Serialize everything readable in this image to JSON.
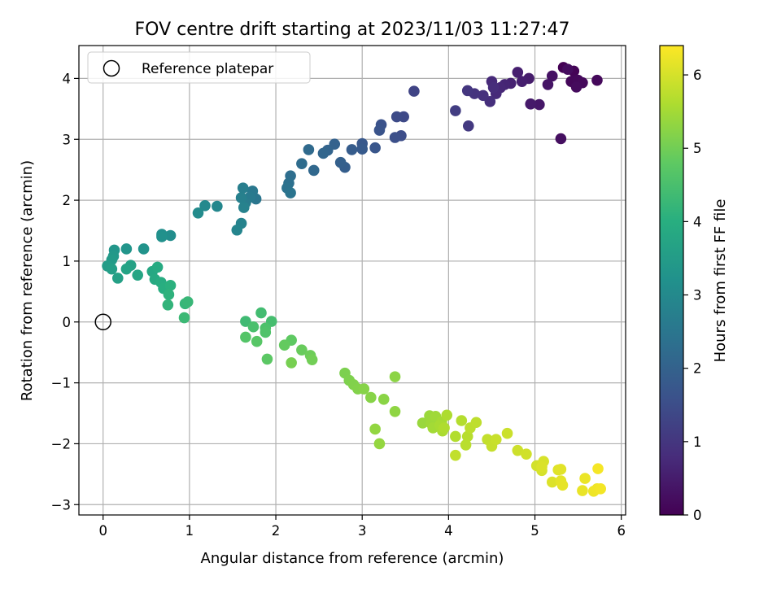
{
  "chart_data": {
    "type": "scatter",
    "title": "FOV centre drift starting at 2023/11/03 11:27:47",
    "xlabel": "Angular distance from reference (arcmin)",
    "ylabel": "Rotation from reference (arcmin)",
    "xlim": [
      -0.28,
      6.05
    ],
    "ylim": [
      -3.17,
      4.54
    ],
    "xticks": [
      0,
      1,
      2,
      3,
      4,
      5,
      6
    ],
    "yticks": [
      -3,
      -2,
      -1,
      0,
      1,
      2,
      3,
      4
    ],
    "grid": true,
    "legend": {
      "placement": "top-left",
      "entries": [
        "Reference platepar"
      ]
    },
    "reference_point": {
      "x": 0,
      "y": 0
    },
    "colormap": "viridis",
    "colorbar": {
      "label": "Hours from first FF file",
      "range": [
        0,
        6.4
      ],
      "ticks": [
        0,
        1,
        2,
        3,
        4,
        5,
        6
      ]
    },
    "points": [
      {
        "x": 5.33,
        "y": 4.18,
        "t": 0.0
      },
      {
        "x": 5.45,
        "y": 4.12,
        "t": 0.05
      },
      {
        "x": 5.46,
        "y": 3.98,
        "t": 0.08
      },
      {
        "x": 5.42,
        "y": 3.95,
        "t": 0.1
      },
      {
        "x": 5.5,
        "y": 3.97,
        "t": 0.12
      },
      {
        "x": 5.55,
        "y": 3.93,
        "t": 0.15
      },
      {
        "x": 5.72,
        "y": 3.97,
        "t": 0.15
      },
      {
        "x": 5.48,
        "y": 3.86,
        "t": 0.18
      },
      {
        "x": 5.38,
        "y": 4.15,
        "t": 0.2
      },
      {
        "x": 5.3,
        "y": 3.01,
        "t": 0.25
      },
      {
        "x": 5.2,
        "y": 4.04,
        "t": 0.3
      },
      {
        "x": 5.15,
        "y": 3.9,
        "t": 0.35
      },
      {
        "x": 5.05,
        "y": 3.57,
        "t": 0.4
      },
      {
        "x": 4.95,
        "y": 3.58,
        "t": 0.45
      },
      {
        "x": 4.93,
        "y": 4.0,
        "t": 0.5
      },
      {
        "x": 4.8,
        "y": 4.1,
        "t": 0.55
      },
      {
        "x": 4.85,
        "y": 3.95,
        "t": 0.55
      },
      {
        "x": 4.72,
        "y": 3.92,
        "t": 0.6
      },
      {
        "x": 4.65,
        "y": 3.9,
        "t": 0.65
      },
      {
        "x": 4.6,
        "y": 3.85,
        "t": 0.7
      },
      {
        "x": 4.55,
        "y": 3.75,
        "t": 0.75
      },
      {
        "x": 4.5,
        "y": 3.95,
        "t": 0.75
      },
      {
        "x": 4.52,
        "y": 3.85,
        "t": 0.8
      },
      {
        "x": 4.48,
        "y": 3.62,
        "t": 0.85
      },
      {
        "x": 4.4,
        "y": 3.72,
        "t": 0.9
      },
      {
        "x": 4.3,
        "y": 3.75,
        "t": 0.95
      },
      {
        "x": 4.22,
        "y": 3.8,
        "t": 1.0
      },
      {
        "x": 4.23,
        "y": 3.22,
        "t": 1.05
      },
      {
        "x": 4.08,
        "y": 3.47,
        "t": 1.15
      },
      {
        "x": 3.6,
        "y": 3.79,
        "t": 1.3
      },
      {
        "x": 3.48,
        "y": 3.37,
        "t": 1.4
      },
      {
        "x": 3.4,
        "y": 3.37,
        "t": 1.45
      },
      {
        "x": 3.45,
        "y": 3.06,
        "t": 1.5
      },
      {
        "x": 3.38,
        "y": 3.03,
        "t": 1.55
      },
      {
        "x": 3.22,
        "y": 3.24,
        "t": 1.6
      },
      {
        "x": 3.2,
        "y": 3.15,
        "t": 1.65
      },
      {
        "x": 3.15,
        "y": 2.86,
        "t": 1.7
      },
      {
        "x": 3.0,
        "y": 2.93,
        "t": 1.75
      },
      {
        "x": 3.0,
        "y": 2.84,
        "t": 1.8
      },
      {
        "x": 2.88,
        "y": 2.83,
        "t": 1.85
      },
      {
        "x": 2.8,
        "y": 2.54,
        "t": 1.9
      },
      {
        "x": 2.75,
        "y": 2.62,
        "t": 1.95
      },
      {
        "x": 2.68,
        "y": 2.92,
        "t": 2.0
      },
      {
        "x": 2.6,
        "y": 2.82,
        "t": 2.05
      },
      {
        "x": 2.55,
        "y": 2.77,
        "t": 2.1
      },
      {
        "x": 2.44,
        "y": 2.49,
        "t": 2.15
      },
      {
        "x": 2.38,
        "y": 2.83,
        "t": 2.2
      },
      {
        "x": 2.3,
        "y": 2.6,
        "t": 2.25
      },
      {
        "x": 2.17,
        "y": 2.4,
        "t": 2.3
      },
      {
        "x": 2.15,
        "y": 2.28,
        "t": 2.35
      },
      {
        "x": 2.13,
        "y": 2.2,
        "t": 2.4
      },
      {
        "x": 2.17,
        "y": 2.12,
        "t": 2.45
      },
      {
        "x": 1.77,
        "y": 2.02,
        "t": 2.5
      },
      {
        "x": 1.73,
        "y": 2.15,
        "t": 2.55
      },
      {
        "x": 1.7,
        "y": 2.05,
        "t": 2.6
      },
      {
        "x": 1.65,
        "y": 1.96,
        "t": 2.65
      },
      {
        "x": 1.62,
        "y": 2.2,
        "t": 2.7
      },
      {
        "x": 1.6,
        "y": 2.04,
        "t": 2.75
      },
      {
        "x": 1.63,
        "y": 1.88,
        "t": 2.8
      },
      {
        "x": 1.6,
        "y": 1.62,
        "t": 2.85
      },
      {
        "x": 1.55,
        "y": 1.51,
        "t": 2.9
      },
      {
        "x": 1.32,
        "y": 1.9,
        "t": 2.95
      },
      {
        "x": 1.18,
        "y": 1.91,
        "t": 3.0
      },
      {
        "x": 1.1,
        "y": 1.79,
        "t": 3.05
      },
      {
        "x": 0.78,
        "y": 1.42,
        "t": 3.1
      },
      {
        "x": 0.68,
        "y": 1.44,
        "t": 3.15
      },
      {
        "x": 0.68,
        "y": 1.4,
        "t": 3.2
      },
      {
        "x": 0.47,
        "y": 1.2,
        "t": 3.25
      },
      {
        "x": 0.27,
        "y": 1.2,
        "t": 3.3
      },
      {
        "x": 0.13,
        "y": 1.18,
        "t": 3.35
      },
      {
        "x": 0.12,
        "y": 1.08,
        "t": 3.4
      },
      {
        "x": 0.1,
        "y": 1.02,
        "t": 3.45
      },
      {
        "x": 0.05,
        "y": 0.92,
        "t": 3.5
      },
      {
        "x": 0.1,
        "y": 0.87,
        "t": 3.55
      },
      {
        "x": 0.17,
        "y": 0.72,
        "t": 3.6
      },
      {
        "x": 0.32,
        "y": 0.93,
        "t": 3.65
      },
      {
        "x": 0.27,
        "y": 0.87,
        "t": 3.7
      },
      {
        "x": 0.4,
        "y": 0.77,
        "t": 3.75
      },
      {
        "x": 0.57,
        "y": 0.83,
        "t": 3.8
      },
      {
        "x": 0.6,
        "y": 0.7,
        "t": 3.85
      },
      {
        "x": 0.63,
        "y": 0.9,
        "t": 3.9
      },
      {
        "x": 0.67,
        "y": 0.65,
        "t": 3.95
      },
      {
        "x": 0.7,
        "y": 0.55,
        "t": 4.0
      },
      {
        "x": 0.78,
        "y": 0.6,
        "t": 4.05
      },
      {
        "x": 0.76,
        "y": 0.45,
        "t": 4.1
      },
      {
        "x": 0.75,
        "y": 0.28,
        "t": 4.15
      },
      {
        "x": 0.95,
        "y": 0.3,
        "t": 4.2
      },
      {
        "x": 0.98,
        "y": 0.33,
        "t": 4.25
      },
      {
        "x": 0.94,
        "y": 0.07,
        "t": 4.3
      },
      {
        "x": 1.65,
        "y": 0.01,
        "t": 4.35
      },
      {
        "x": 1.83,
        "y": 0.15,
        "t": 4.4
      },
      {
        "x": 1.95,
        "y": 0.01,
        "t": 4.45
      },
      {
        "x": 1.74,
        "y": -0.08,
        "t": 4.5
      },
      {
        "x": 1.88,
        "y": -0.1,
        "t": 4.55
      },
      {
        "x": 1.88,
        "y": -0.17,
        "t": 4.6
      },
      {
        "x": 1.65,
        "y": -0.25,
        "t": 4.65
      },
      {
        "x": 1.78,
        "y": -0.32,
        "t": 4.7
      },
      {
        "x": 1.9,
        "y": -0.61,
        "t": 4.75
      },
      {
        "x": 2.18,
        "y": -0.3,
        "t": 4.8
      },
      {
        "x": 2.1,
        "y": -0.38,
        "t": 4.85
      },
      {
        "x": 2.3,
        "y": -0.46,
        "t": 4.9
      },
      {
        "x": 2.4,
        "y": -0.55,
        "t": 4.95
      },
      {
        "x": 2.42,
        "y": -0.62,
        "t": 5.0
      },
      {
        "x": 2.18,
        "y": -0.67,
        "t": 5.05
      },
      {
        "x": 2.8,
        "y": -0.84,
        "t": 5.1
      },
      {
        "x": 2.85,
        "y": -0.96,
        "t": 5.12
      },
      {
        "x": 2.9,
        "y": -1.03,
        "t": 5.15
      },
      {
        "x": 2.95,
        "y": -1.1,
        "t": 5.17
      },
      {
        "x": 3.02,
        "y": -1.1,
        "t": 5.2
      },
      {
        "x": 3.1,
        "y": -1.24,
        "t": 5.22
      },
      {
        "x": 3.25,
        "y": -1.27,
        "t": 5.25
      },
      {
        "x": 3.38,
        "y": -0.9,
        "t": 5.27
      },
      {
        "x": 3.38,
        "y": -1.47,
        "t": 5.3
      },
      {
        "x": 3.15,
        "y": -1.76,
        "t": 5.33
      },
      {
        "x": 3.2,
        "y": -2.0,
        "t": 5.35
      },
      {
        "x": 3.7,
        "y": -1.66,
        "t": 5.4
      },
      {
        "x": 3.78,
        "y": -1.54,
        "t": 5.42
      },
      {
        "x": 3.8,
        "y": -1.67,
        "t": 5.45
      },
      {
        "x": 3.85,
        "y": -1.55,
        "t": 5.47
      },
      {
        "x": 3.82,
        "y": -1.74,
        "t": 5.5
      },
      {
        "x": 3.92,
        "y": -1.64,
        "t": 5.52
      },
      {
        "x": 3.9,
        "y": -1.7,
        "t": 5.55
      },
      {
        "x": 3.93,
        "y": -1.79,
        "t": 5.57
      },
      {
        "x": 3.98,
        "y": -1.53,
        "t": 5.6
      },
      {
        "x": 3.95,
        "y": -1.74,
        "t": 5.62
      },
      {
        "x": 4.08,
        "y": -1.88,
        "t": 5.65
      },
      {
        "x": 4.15,
        "y": -1.62,
        "t": 5.67
      },
      {
        "x": 4.22,
        "y": -1.88,
        "t": 5.7
      },
      {
        "x": 4.2,
        "y": -2.02,
        "t": 5.72
      },
      {
        "x": 4.25,
        "y": -1.74,
        "t": 5.75
      },
      {
        "x": 4.32,
        "y": -1.65,
        "t": 5.77
      },
      {
        "x": 4.08,
        "y": -2.19,
        "t": 5.8
      },
      {
        "x": 4.45,
        "y": -1.93,
        "t": 5.82
      },
      {
        "x": 4.5,
        "y": -2.04,
        "t": 5.85
      },
      {
        "x": 4.55,
        "y": -1.93,
        "t": 5.87
      },
      {
        "x": 4.68,
        "y": -1.83,
        "t": 5.9
      },
      {
        "x": 4.8,
        "y": -2.11,
        "t": 5.92
      },
      {
        "x": 4.9,
        "y": -2.17,
        "t": 5.95
      },
      {
        "x": 5.02,
        "y": -2.36,
        "t": 5.97
      },
      {
        "x": 5.08,
        "y": -2.44,
        "t": 6.0
      },
      {
        "x": 5.1,
        "y": -2.29,
        "t": 6.02
      },
      {
        "x": 5.08,
        "y": -2.38,
        "t": 6.05
      },
      {
        "x": 5.2,
        "y": -2.63,
        "t": 6.07
      },
      {
        "x": 5.27,
        "y": -2.43,
        "t": 6.1
      },
      {
        "x": 5.3,
        "y": -2.42,
        "t": 6.12
      },
      {
        "x": 5.3,
        "y": -2.61,
        "t": 6.15
      },
      {
        "x": 5.32,
        "y": -2.68,
        "t": 6.17
      },
      {
        "x": 5.55,
        "y": -2.77,
        "t": 6.2
      },
      {
        "x": 5.58,
        "y": -2.57,
        "t": 6.22
      },
      {
        "x": 5.68,
        "y": -2.78,
        "t": 6.25
      },
      {
        "x": 5.72,
        "y": -2.74,
        "t": 6.27
      },
      {
        "x": 5.76,
        "y": -2.74,
        "t": 6.3
      },
      {
        "x": 5.73,
        "y": -2.41,
        "t": 6.32
      }
    ]
  }
}
